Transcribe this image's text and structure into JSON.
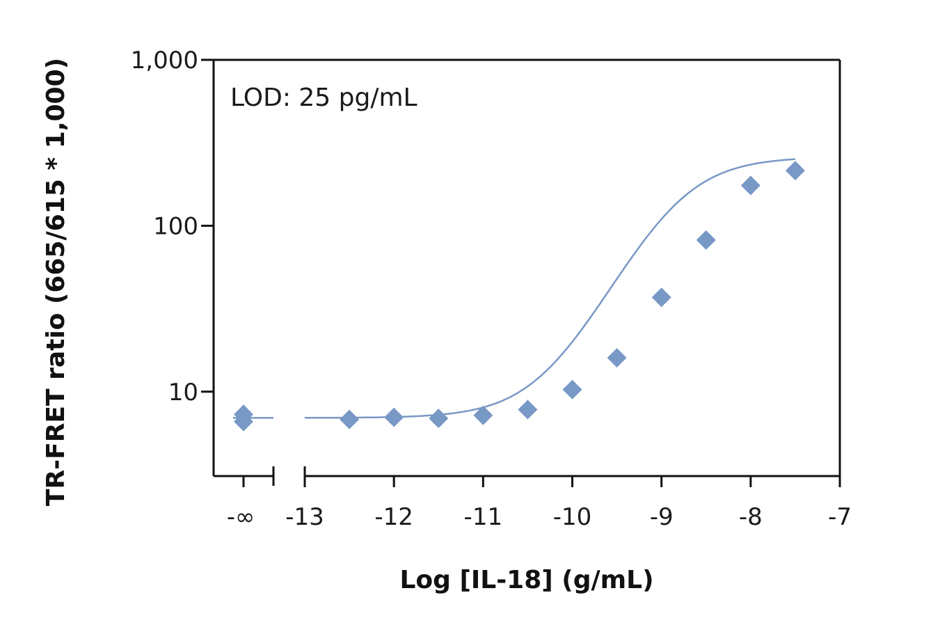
{
  "chart_data": {
    "type": "scatter",
    "title": "",
    "xlabel": "Log [IL-18] (g/mL)",
    "ylabel": "TR-FRET ratio (665/615 * 1,000)",
    "annotation": "LOD: 25 pg/mL",
    "y_scale": "log",
    "ylim": [
      3.1,
      1000
    ],
    "xlim": [
      -13,
      -7
    ],
    "x_ticks": [
      {
        "value": -13,
        "label": "-13"
      },
      {
        "value": -12,
        "label": "-12"
      },
      {
        "value": -11,
        "label": "-11"
      },
      {
        "value": -10,
        "label": "-10"
      },
      {
        "value": -9,
        "label": "-9"
      },
      {
        "value": -8,
        "label": "-8"
      },
      {
        "value": -7,
        "label": "-7"
      }
    ],
    "y_ticks": [
      {
        "value": 10,
        "label": "10"
      },
      {
        "value": 100,
        "label": "100"
      },
      {
        "value": 1000,
        "label": "1,000"
      }
    ],
    "neg_infinity_label": "-∞",
    "marker_color": "#7898C6",
    "line_color": "#7898C6",
    "grid": false,
    "zero_dose_points": [
      7.3,
      6.6
    ],
    "points": [
      {
        "x": -12.5,
        "y": 6.8
      },
      {
        "x": -12.0,
        "y": 7.0
      },
      {
        "x": -11.5,
        "y": 6.9
      },
      {
        "x": -11.0,
        "y": 7.2
      },
      {
        "x": -10.5,
        "y": 7.8
      },
      {
        "x": -10.0,
        "y": 10.3
      },
      {
        "x": -9.5,
        "y": 16.0
      },
      {
        "x": -9.0,
        "y": 37.0
      },
      {
        "x": -8.5,
        "y": 82.0
      },
      {
        "x": -8.0,
        "y": 175.0
      },
      {
        "x": -7.5,
        "y": 215.0
      }
    ],
    "fit": {
      "bottom": 6.95,
      "top": 260,
      "log_ec50": -8.85,
      "hill": 1.1
    }
  }
}
